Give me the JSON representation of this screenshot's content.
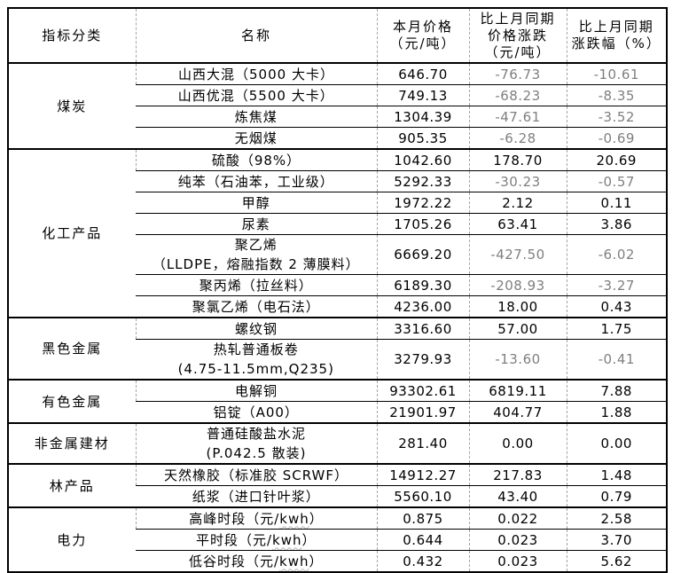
{
  "colors": {
    "border": "#000000",
    "grid_dash": "#a3a3a3",
    "text": "#000000",
    "negative_value": "#7f7f7f",
    "squiggle": "#b5b5b5"
  },
  "table": {
    "headers": [
      {
        "text": "指标分类"
      },
      {
        "text": "名称"
      },
      {
        "text": "本月价格\n（元/吨）"
      },
      {
        "text": "比上月同期\n价格涨跌\n（元/吨）"
      },
      {
        "text": "比上月同期\n涨跌幅（%）"
      }
    ],
    "groups": [
      {
        "category": "煤炭",
        "rows": [
          {
            "name": "山西大混（5000 大卡）",
            "price": "646.70",
            "change": "-76.73",
            "pct": "-10.61"
          },
          {
            "name": "山西优混（5500 大卡）",
            "price": "749.13",
            "change": "-68.23",
            "pct": "-8.35"
          },
          {
            "name": "炼焦煤",
            "price": "1304.39",
            "change": "-47.61",
            "pct": "-3.52"
          },
          {
            "name": "无烟煤",
            "price": "905.35",
            "change": "-6.28",
            "pct": "-0.69"
          }
        ]
      },
      {
        "category": "化工产品",
        "rows": [
          {
            "name": "硫酸（98%）",
            "price": "1042.60",
            "change": "178.70",
            "pct": "20.69"
          },
          {
            "name": "纯苯（石油苯，工业级）",
            "price": "5292.33",
            "change": "-30.23",
            "pct": "-0.57"
          },
          {
            "name": "甲醇",
            "price": "1972.22",
            "change": "2.12",
            "pct": "0.11"
          },
          {
            "name": "尿素",
            "price": "1705.26",
            "change": "63.41",
            "pct": "3.86"
          },
          {
            "name": "聚乙烯\n（LLDPE，熔融指数 2 薄膜料）",
            "price": "6669.20",
            "change": "-427.50",
            "pct": "-6.02"
          },
          {
            "name": "聚丙烯（拉丝料）",
            "price": "6189.30",
            "change": "-208.93",
            "pct": "-3.27"
          },
          {
            "name": "聚氯乙烯（电石法）",
            "price": "4236.00",
            "change": "18.00",
            "pct": "0.43"
          }
        ]
      },
      {
        "category": "黑色金属",
        "rows": [
          {
            "name": "螺纹钢",
            "price": "3316.60",
            "change": "57.00",
            "pct": "1.75"
          },
          {
            "name": "热轧普通板卷\n(4.75-11.5mm,Q235)",
            "price": "3279.93",
            "change": "-13.60",
            "pct": "-0.41"
          }
        ]
      },
      {
        "category": "有色金属",
        "rows": [
          {
            "name": "电解铜",
            "price": "93302.61",
            "change": "6819.11",
            "pct": "7.88"
          },
          {
            "name": "铝锭（A00）",
            "price": "21901.97",
            "change": "404.77",
            "pct": "1.88"
          }
        ]
      },
      {
        "category": "非金属建材",
        "rows": [
          {
            "name": "普通硅酸盐水泥\n(P.042.5 散装)",
            "price": "281.40",
            "change": "0.00",
            "pct": "0.00"
          }
        ]
      },
      {
        "category": "林产品",
        "rows": [
          {
            "name": "天然橡胶（标准胶 SCRWF）",
            "price": "14912.27",
            "change": "217.83",
            "pct": "1.48"
          },
          {
            "name": "纸浆（进口针叶浆）",
            "price": "5560.10",
            "change": "43.40",
            "pct": "0.79"
          }
        ]
      },
      {
        "category": "电力",
        "rows": [
          {
            "name": "高峰时段（元/kwh）",
            "squiggle": "kwh",
            "price": "0.875",
            "change": "0.022",
            "pct": "2.58"
          },
          {
            "name": "平时段（元/kwh）",
            "squiggle": "kwh",
            "price": "0.644",
            "change": "0.023",
            "pct": "3.70"
          },
          {
            "name": "低谷时段（元/kwh）",
            "squiggle": "kwh",
            "price": "0.432",
            "change": "0.023",
            "pct": "5.62"
          }
        ]
      }
    ]
  }
}
